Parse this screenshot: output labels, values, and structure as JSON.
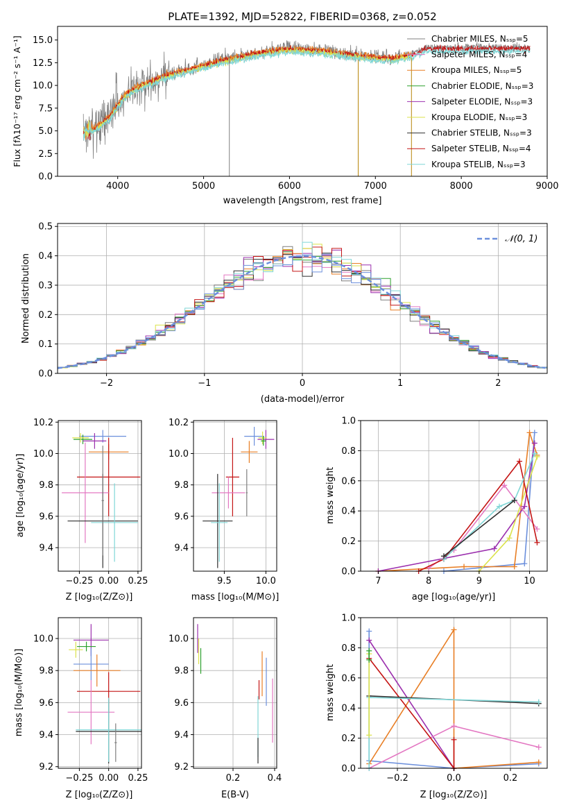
{
  "colors": {
    "chabrier_miles": "#7f7f7f",
    "salpeter_miles": "#e377c2",
    "kroupa_miles": "#e87e24",
    "chabrier_elodie": "#2ca02c",
    "salpeter_elodie": "#9b2fae",
    "kroupa_elodie": "#dbe24a",
    "chabrier_stelib": "#2f2f2f",
    "salpeter_stelib": "#c41414",
    "kroupa_stelib": "#7fd6d6",
    "blue": "#6b8fdc",
    "teal": "#3a6b6b",
    "grid": "#b0b0b0"
  },
  "chart_data": [
    {
      "id": "spectrum",
      "type": "line",
      "title": "PLATE=1392, MJD=52822, FIBERID=0368, z=0.052",
      "xlabel": "wavelength [Angstrom, rest frame]",
      "ylabel": "Flux [fλ10⁻¹⁷ erg cm⁻² s⁻¹ A⁻¹]",
      "xlim": [
        3300,
        9000
      ],
      "ylim": [
        0,
        16.5
      ],
      "xticks": [
        4000,
        5000,
        6000,
        7000,
        8000,
        9000
      ],
      "yticks": [
        0.0,
        2.5,
        5.0,
        7.5,
        10.0,
        12.5,
        15.0
      ],
      "grid": false,
      "legend": "upper right",
      "legend_entries": [
        {
          "label": "Chabrier MILES, Nₛₛₚ=5",
          "color_key": "chabrier_miles"
        },
        {
          "label": "Salpeter MILES, Nₛₛₚ=4",
          "color_key": "salpeter_miles"
        },
        {
          "label": "Kroupa MILES, Nₛₛₚ=5",
          "color_key": "kroupa_miles"
        },
        {
          "label": "Chabrier ELODIE, Nₛₛₚ=3",
          "color_key": "chabrier_elodie"
        },
        {
          "label": "Salpeter ELODIE, Nₛₛₚ=3",
          "color_key": "salpeter_elodie"
        },
        {
          "label": "Kroupa ELODIE, Nₛₛₚ=3",
          "color_key": "kroupa_elodie"
        },
        {
          "label": "Chabrier STELIB, Nₛₛₚ=3",
          "color_key": "chabrier_stelib"
        },
        {
          "label": "Salpeter STELIB, Nₛₛₚ=4",
          "color_key": "salpeter_stelib"
        },
        {
          "label": "Kroupa STELIB, Nₛₛₚ=3",
          "color_key": "kroupa_stelib"
        }
      ],
      "continuum": {
        "x": [
          3620,
          3700,
          3800,
          3900,
          4000,
          4100,
          4200,
          4400,
          4600,
          4800,
          5000,
          5200,
          5400,
          5600,
          5800,
          6000,
          6200,
          6400,
          6600,
          6800,
          7000,
          7200,
          7400,
          7600
        ],
        "y": [
          4.8,
          5.2,
          5.8,
          6.6,
          8.0,
          9.2,
          9.8,
          10.6,
          11.3,
          11.8,
          12.3,
          12.8,
          13.2,
          13.6,
          13.9,
          14.1,
          14.0,
          13.9,
          13.6,
          13.4,
          13.2,
          13.1,
          13.4,
          14.2
        ]
      },
      "data": {
        "x_range": [
          3600,
          8800
        ],
        "spikes": [
          {
            "x": 5300,
            "y_min": 0,
            "y_max": 13.2
          },
          {
            "x": 6800,
            "y_min": 0,
            "y_max": 12.8
          },
          {
            "x": 7420,
            "y_min": 0,
            "y_max": 13.0
          }
        ]
      }
    },
    {
      "id": "residual_hist",
      "type": "bar",
      "xlabel": "(data-model)/error",
      "ylabel": "Normed distribution",
      "xlim": [
        -2.5,
        2.5
      ],
      "ylim": [
        0,
        0.51
      ],
      "xticks": [
        -2,
        -1,
        0,
        1,
        2
      ],
      "yticks": [
        0.0,
        0.1,
        0.2,
        0.3,
        0.4,
        0.5
      ],
      "grid": true,
      "legend": "upper right",
      "legend_entries": [
        {
          "label": "𝒩(0, 1)",
          "color_key": "blue"
        }
      ],
      "bin_width": 0.1
    },
    {
      "id": "z_age",
      "type": "scatter",
      "xlabel": "Z [log₁₀(Z/Z⊙)]",
      "ylabel": "age  [log₁₀(age/yr)]",
      "xlim": [
        -0.43,
        0.28
      ],
      "ylim": [
        9.25,
        10.21
      ],
      "xticks": [
        -0.25,
        0.0,
        0.25
      ],
      "yticks": [
        9.4,
        9.6,
        9.8,
        10.0,
        10.2
      ],
      "grid": true,
      "points": [
        {
          "color_key": "blue",
          "x": -0.05,
          "xerr": 0.2,
          "y": 10.11,
          "yerr": 0.04
        },
        {
          "color_key": "chabrier_elodie",
          "x": -0.22,
          "xerr": 0.08,
          "y": 10.09,
          "yerr": 0.03
        },
        {
          "color_key": "kroupa_elodie",
          "x": -0.24,
          "xerr": 0.07,
          "y": 10.1,
          "yerr": 0.03
        },
        {
          "color_key": "salpeter_elodie",
          "x": -0.12,
          "xerr": 0.1,
          "y": 10.08,
          "yerr": 0.05
        },
        {
          "color_key": "kroupa_miles",
          "x": 0.0,
          "xerr": 0.17,
          "y": 10.01,
          "yerr": 0.05
        },
        {
          "color_key": "salpeter_stelib",
          "x": 0.0,
          "xerr": 0.27,
          "y": 9.85,
          "yerr": 0.25
        },
        {
          "color_key": "salpeter_miles",
          "x": -0.2,
          "xerr": 0.2,
          "y": 9.75,
          "yerr": 0.32
        },
        {
          "color_key": "chabrier_stelib",
          "x": -0.05,
          "xerr": 0.3,
          "y": 9.57,
          "yerr": 0.3
        },
        {
          "color_key": "kroupa_stelib",
          "x": 0.05,
          "xerr": 0.2,
          "y": 9.56,
          "yerr": 0.25
        },
        {
          "color_key": "chabrier_miles",
          "x": -0.05,
          "xerr": 0.01,
          "y": 9.7,
          "yerr": 0.35
        }
      ]
    },
    {
      "id": "mass_age",
      "type": "scatter",
      "xlabel": "mass [log₁₀(M/M⊙)]",
      "ylabel": "",
      "xlim": [
        9.13,
        10.13
      ],
      "ylim": [
        9.25,
        10.21
      ],
      "xticks": [
        9.5,
        10.0
      ],
      "yticks": [
        9.4,
        9.6,
        9.8,
        10.0,
        10.2
      ],
      "grid": true,
      "points": [
        {
          "color_key": "blue",
          "x": 9.86,
          "xerr": 0.12,
          "y": 10.11,
          "yerr": 0.06
        },
        {
          "color_key": "salpeter_elodie",
          "x": 10.0,
          "xerr": 0.1,
          "y": 10.09,
          "yerr": 0.06
        },
        {
          "color_key": "kroupa_elodie",
          "x": 9.96,
          "xerr": 0.05,
          "y": 10.1,
          "yerr": 0.04
        },
        {
          "color_key": "chabrier_elodie",
          "x": 9.97,
          "xerr": 0.03,
          "y": 10.08,
          "yerr": 0.03
        },
        {
          "color_key": "kroupa_miles",
          "x": 9.8,
          "xerr": 0.1,
          "y": 10.01,
          "yerr": 0.07
        },
        {
          "color_key": "salpeter_stelib",
          "x": 9.6,
          "xerr": 0.08,
          "y": 9.85,
          "yerr": 0.25
        },
        {
          "color_key": "salpeter_miles",
          "x": 9.55,
          "xerr": 0.2,
          "y": 9.75,
          "yerr": 0.1
        },
        {
          "color_key": "chabrier_stelib",
          "x": 9.42,
          "xerr": 0.18,
          "y": 9.57,
          "yerr": 0.3
        },
        {
          "color_key": "kroupa_stelib",
          "x": 9.44,
          "xerr": 0.1,
          "y": 9.56,
          "yerr": 0.25
        },
        {
          "color_key": "chabrier_miles",
          "x": 9.77,
          "xerr": 0.01,
          "y": 9.75,
          "yerr": 0.15
        }
      ]
    },
    {
      "id": "age_weight",
      "type": "line",
      "xlabel": "age  [log₁₀(age/yr)]",
      "ylabel": "mass weight",
      "xlim": [
        6.65,
        10.35
      ],
      "ylim": [
        0,
        1.0
      ],
      "xticks": [
        7,
        8,
        9,
        10
      ],
      "yticks": [
        0.0,
        0.2,
        0.4,
        0.6,
        0.8,
        1.0
      ],
      "grid": true,
      "series": [
        {
          "color_key": "blue",
          "x": [
            8.3,
            9.9,
            10.1
          ],
          "y": [
            0.0,
            0.05,
            0.92
          ]
        },
        {
          "color_key": "kroupa_miles",
          "x": [
            7.0,
            8.7,
            9.7,
            10.0,
            10.15
          ],
          "y": [
            0.0,
            0.03,
            0.03,
            0.92,
            0.77
          ]
        },
        {
          "color_key": "salpeter_elodie",
          "x": [
            7.0,
            9.3,
            9.9,
            10.1
          ],
          "y": [
            0.0,
            0.15,
            0.43,
            0.85
          ]
        },
        {
          "color_key": "kroupa_elodie",
          "x": [
            9.0,
            9.6,
            10.15
          ],
          "y": [
            0.0,
            0.22,
            0.76
          ]
        },
        {
          "color_key": "salpeter_miles",
          "x": [
            8.0,
            8.5,
            9.5,
            10.15
          ],
          "y": [
            0.02,
            0.14,
            0.57,
            0.28
          ]
        },
        {
          "color_key": "salpeter_stelib",
          "x": [
            7.8,
            8.3,
            9.8,
            10.15
          ],
          "y": [
            0.0,
            0.08,
            0.73,
            0.19
          ]
        },
        {
          "color_key": "kroupa_stelib",
          "x": [
            8.3,
            9.4,
            9.7,
            10.1
          ],
          "y": [
            0.08,
            0.43,
            0.47,
            0.78
          ]
        },
        {
          "color_key": "chabrier_stelib",
          "x": [
            8.3,
            9.7
          ],
          "y": [
            0.1,
            0.47
          ]
        }
      ]
    },
    {
      "id": "z_mass",
      "type": "scatter",
      "xlabel": "Z [log₁₀(Z/Z⊙)]",
      "ylabel": "mass [log₁₀(M/M⊙)]",
      "xlim": [
        -0.43,
        0.28
      ],
      "ylim": [
        9.19,
        10.13
      ],
      "xticks": [
        -0.25,
        0.0,
        0.25
      ],
      "yticks": [
        9.2,
        9.4,
        9.6,
        9.8,
        10.0
      ],
      "grid": true,
      "points": [
        {
          "color_key": "salpeter_elodie",
          "x": -0.15,
          "xerr": 0.15,
          "y": 9.99,
          "yerr": 0.1
        },
        {
          "color_key": "kroupa_elodie",
          "x": -0.28,
          "xerr": 0.06,
          "y": 9.93,
          "yerr": 0.05
        },
        {
          "color_key": "chabrier_elodie",
          "x": -0.19,
          "xerr": 0.08,
          "y": 9.95,
          "yerr": 0.03
        },
        {
          "color_key": "blue",
          "x": -0.15,
          "xerr": 0.15,
          "y": 9.84,
          "yerr": 0.1
        },
        {
          "color_key": "kroupa_miles",
          "x": -0.1,
          "xerr": 0.2,
          "y": 9.8,
          "yerr": 0.1
        },
        {
          "color_key": "salpeter_stelib",
          "x": 0.0,
          "xerr": 0.27,
          "y": 9.67,
          "yerr": 0.12
        },
        {
          "color_key": "salpeter_miles",
          "x": -0.15,
          "xerr": 0.2,
          "y": 9.54,
          "yerr": 0.2
        },
        {
          "color_key": "chabrier_stelib",
          "x": 0.0,
          "xerr": 0.28,
          "y": 9.42,
          "yerr": 0.2
        },
        {
          "color_key": "kroupa_stelib",
          "x": 0.0,
          "xerr": 0.28,
          "y": 9.43,
          "yerr": 0.2
        },
        {
          "color_key": "chabrier_miles",
          "x": 0.06,
          "xerr": 0.01,
          "y": 9.35,
          "yerr": 0.12
        }
      ]
    },
    {
      "id": "ebv_mass",
      "type": "scatter",
      "xlabel": "E(B-V)",
      "ylabel": "",
      "xlim": [
        0.01,
        0.41
      ],
      "ylim": [
        9.19,
        10.13
      ],
      "xticks": [
        0.2,
        0.4
      ],
      "yticks": [
        9.2,
        9.4,
        9.6,
        9.8,
        10.0
      ],
      "grid": true,
      "points": [
        {
          "color_key": "salpeter_elodie",
          "x": 0.03,
          "y": 10.0,
          "yerr": 0.09
        },
        {
          "color_key": "kroupa_elodie",
          "x": 0.035,
          "y": 9.92,
          "yerr": 0.08
        },
        {
          "color_key": "chabrier_elodie",
          "x": 0.045,
          "y": 9.86,
          "yerr": 0.08
        },
        {
          "color_key": "kroupa_miles",
          "x": 0.34,
          "y": 9.78,
          "yerr": 0.14
        },
        {
          "color_key": "blue",
          "x": 0.36,
          "y": 9.73,
          "yerr": 0.15
        },
        {
          "color_key": "salpeter_miles",
          "x": 0.39,
          "y": 9.55,
          "yerr": 0.2
        },
        {
          "color_key": "salpeter_stelib",
          "x": 0.325,
          "y": 9.68,
          "yerr": 0.06
        },
        {
          "color_key": "kroupa_stelib",
          "x": 0.32,
          "y": 9.45,
          "yerr": 0.19
        },
        {
          "color_key": "chabrier_stelib",
          "x": 0.32,
          "y": 9.3,
          "yerr": 0.08
        }
      ]
    },
    {
      "id": "z_weight",
      "type": "line",
      "xlabel": "Z [log₁₀(Z/Z⊙)]",
      "ylabel": "mass weight",
      "xlim": [
        -0.33,
        0.33
      ],
      "ylim": [
        0,
        1.0
      ],
      "xticks": [
        -0.2,
        0.0,
        0.2
      ],
      "yticks": [
        0.0,
        0.2,
        0.4,
        0.6,
        0.8,
        1.0
      ],
      "grid": true,
      "series": [
        {
          "color_key": "blue",
          "x": [
            -0.3,
            -0.3,
            0.0,
            0.3
          ],
          "y": [
            0.91,
            0.05,
            0.0,
            0.03
          ]
        },
        {
          "color_key": "kroupa_miles",
          "x": [
            -0.3,
            0.0,
            0.0,
            0.3
          ],
          "y": [
            0.03,
            0.92,
            0.0,
            0.04
          ]
        },
        {
          "color_key": "salpeter_elodie",
          "x": [
            -0.3,
            0.0
          ],
          "y": [
            0.85,
            0.0
          ]
        },
        {
          "color_key": "salpeter_miles",
          "x": [
            -0.3,
            0.0,
            0.3
          ],
          "y": [
            0.0,
            0.28,
            0.14
          ]
        },
        {
          "color_key": "salpeter_stelib",
          "x": [
            -0.3,
            0.0,
            0.0
          ],
          "y": [
            0.73,
            0.0,
            0.19
          ]
        },
        {
          "color_key": "chabrier_stelib",
          "x": [
            -0.3,
            0.3
          ],
          "y": [
            0.48,
            0.43
          ]
        },
        {
          "color_key": "kroupa_stelib",
          "x": [
            -0.3,
            -0.3,
            0.3
          ],
          "y": [
            0.0,
            0.47,
            0.44
          ]
        },
        {
          "color_key": "kroupa_elodie",
          "x": [
            -0.3,
            -0.3
          ],
          "y": [
            0.76,
            0.22
          ]
        },
        {
          "color_key": "chabrier_elodie",
          "x": [
            -0.3,
            -0.3
          ],
          "y": [
            0.78,
            0.72
          ]
        }
      ]
    }
  ]
}
